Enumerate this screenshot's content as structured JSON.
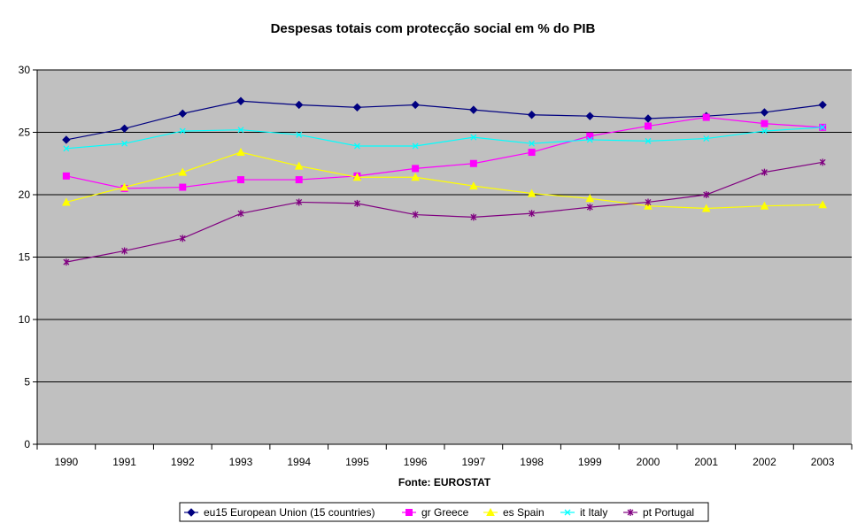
{
  "chart_data": {
    "type": "line",
    "title": "Despesas totais com protecção social em % do PIB",
    "xlabel": "Fonte: EUROSTAT",
    "ylabel": "",
    "ylim": [
      0,
      30
    ],
    "yticks": [
      0,
      5,
      10,
      15,
      20,
      25,
      30
    ],
    "grid": "horizontal",
    "plot_background": "#c0c0c0",
    "legend_position": "bottom",
    "categories": [
      "1990",
      "1991",
      "1992",
      "1993",
      "1994",
      "1995",
      "1996",
      "1997",
      "1998",
      "1999",
      "2000",
      "2001",
      "2002",
      "2003"
    ],
    "series": [
      {
        "name": "eu15 European Union (15 countries)",
        "color": "#000080",
        "marker": "diamond",
        "values": [
          24.4,
          25.3,
          26.5,
          27.5,
          27.2,
          27.0,
          27.2,
          26.8,
          26.4,
          26.3,
          26.1,
          26.3,
          26.6,
          27.2
        ]
      },
      {
        "name": "gr Greece",
        "color": "#ff00ff",
        "marker": "square",
        "values": [
          21.5,
          20.5,
          20.6,
          21.2,
          21.2,
          21.5,
          22.1,
          22.5,
          23.4,
          24.7,
          25.5,
          26.2,
          25.7,
          25.4
        ]
      },
      {
        "name": "es Spain",
        "color": "#ffff00",
        "marker": "triangle",
        "values": [
          19.4,
          20.6,
          21.8,
          23.4,
          22.3,
          21.4,
          21.4,
          20.7,
          20.1,
          19.7,
          19.1,
          18.9,
          19.1,
          19.2
        ]
      },
      {
        "name": "it Italy",
        "color": "#00ffff",
        "marker": "x",
        "values": [
          23.7,
          24.1,
          25.1,
          25.2,
          24.8,
          23.9,
          23.9,
          24.6,
          24.1,
          24.4,
          24.3,
          24.5,
          25.1,
          25.4
        ]
      },
      {
        "name": "pt Portugal",
        "color": "#800080",
        "marker": "star",
        "values": [
          14.6,
          15.5,
          16.5,
          18.5,
          19.4,
          19.3,
          18.4,
          18.2,
          18.5,
          19.0,
          19.4,
          20.0,
          21.8,
          22.6
        ]
      }
    ]
  }
}
